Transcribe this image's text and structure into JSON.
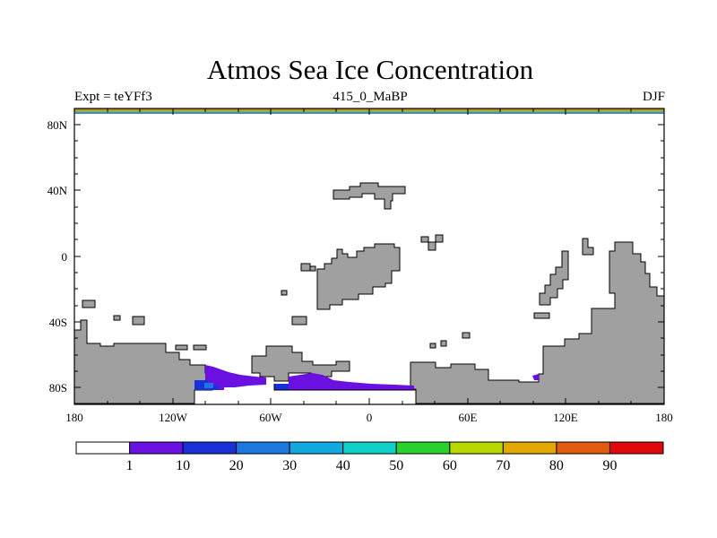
{
  "title": "Atmos Sea Ice Concentration",
  "subtitle_left": "Expt = teYFf3",
  "subtitle_center": "415_0_MaBP",
  "subtitle_right": "DJF",
  "lat_labels": [
    "80N",
    "40N",
    "0",
    "40S",
    "80S"
  ],
  "lon_labels": [
    "180",
    "120W",
    "60W",
    "0",
    "60E",
    "120E",
    "180"
  ],
  "colorbar": {
    "labels": [
      "1",
      "10",
      "20",
      "30",
      "40",
      "50",
      "60",
      "70",
      "80",
      "90"
    ],
    "colors": [
      "#ffffff",
      "#6a10e0",
      "#1830d8",
      "#1a78e0",
      "#12a8e0",
      "#10d0c8",
      "#28d030",
      "#b8d800",
      "#e0a800",
      "#e05a10",
      "#e00808"
    ]
  },
  "colors": {
    "land": "#a0a0a0",
    "ice_low": "#6a10e0",
    "ice_mid": "#1830d8",
    "ice_high": "#1a78e0"
  },
  "chart_data": {
    "type": "heatmap",
    "variable": "Atmos Sea Ice Concentration",
    "x_range": [
      -180,
      180
    ],
    "y_range": [
      -90,
      90
    ],
    "levels": [
      1,
      10,
      20,
      30,
      40,
      50,
      60,
      70,
      80,
      90
    ],
    "x_ticks": [
      -180,
      -120,
      -60,
      0,
      60,
      120,
      180
    ],
    "y_ticks": [
      80,
      40,
      0,
      -40,
      -80
    ]
  }
}
